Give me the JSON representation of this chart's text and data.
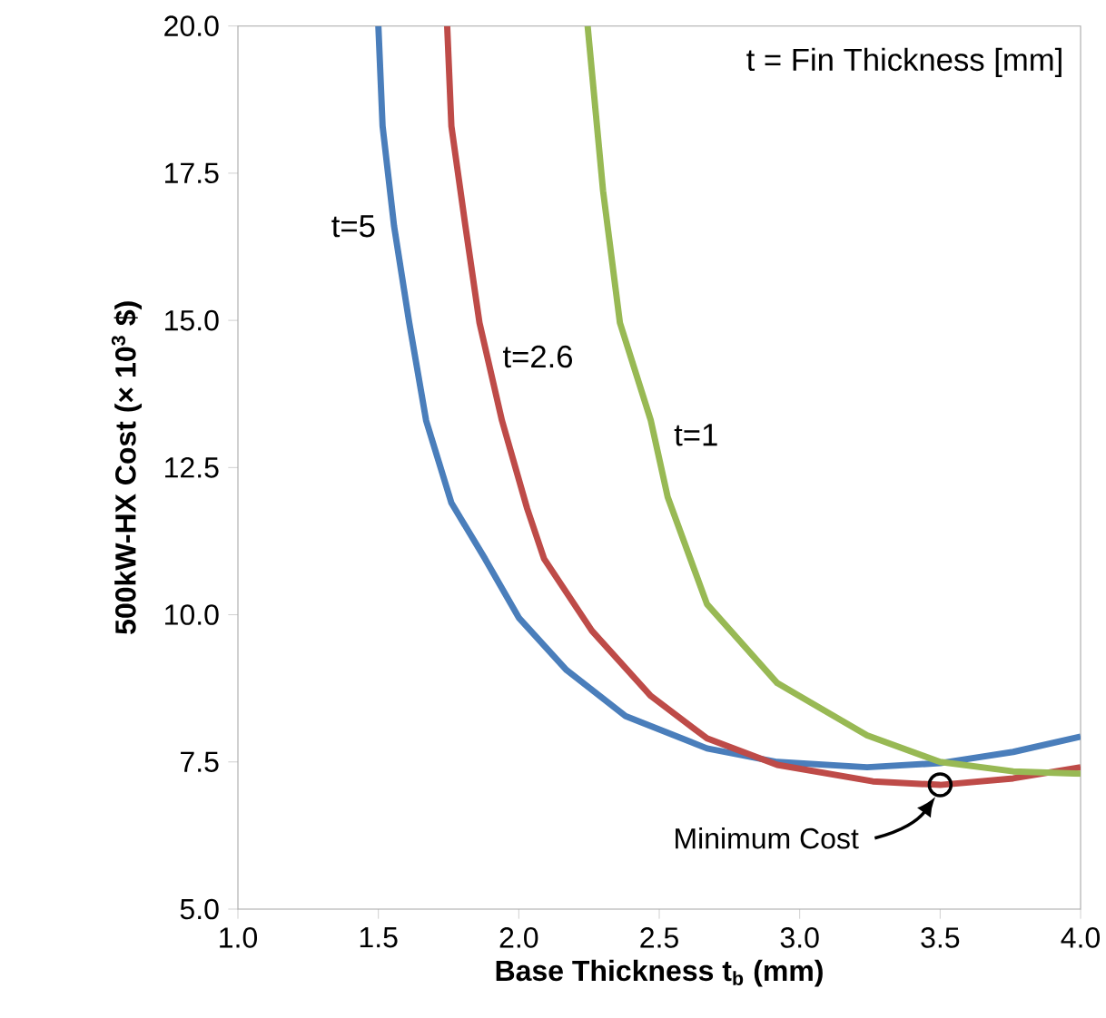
{
  "chart_data": {
    "type": "line",
    "xlabel": "Base Thickness t$_{b}$ (mm)",
    "ylabel": "500kW-HX Cost (× 10$^{3}$ $)",
    "xlim": [
      1.0,
      4.0
    ],
    "ylim": [
      5.0,
      20.0
    ],
    "xticks": [
      {
        "value": 1,
        "label": "1.0"
      },
      1.5,
      {
        "value": 2,
        "label": "2.0"
      },
      2.5,
      {
        "value": 3,
        "label": "3.0"
      },
      3.5,
      {
        "value": 4,
        "label": "4.0"
      }
    ],
    "yticks": [
      {
        "value": 5,
        "label": "5.0"
      },
      7.5,
      {
        "value": 10,
        "label": "10.0"
      },
      12.5,
      {
        "value": 15,
        "label": "15.0"
      },
      17.5,
      {
        "value": 20,
        "label": "20.0"
      }
    ],
    "grid": false,
    "legend": false,
    "marker": "none",
    "line_style": "solid",
    "annotations": [
      "t = Fin Thickness [mm]",
      "Minimum Cost"
    ],
    "series": [
      {
        "name": "t=5",
        "color": "#4a7ebb",
        "x": [
          1.5,
          1.515,
          1.556,
          1.61,
          1.67,
          1.76,
          1.88,
          2.0,
          2.17,
          2.38,
          2.67,
          2.92,
          3.24,
          3.5,
          3.76,
          4.0
        ],
        "values": [
          20.0,
          18.3,
          16.6,
          14.96,
          13.3,
          11.9,
          10.95,
          9.95,
          9.06,
          8.28,
          7.73,
          7.5,
          7.41,
          7.48,
          7.67,
          7.93
        ]
      },
      {
        "name": "t=2.6",
        "color": "#be4b48",
        "x": [
          1.745,
          1.76,
          1.81,
          1.86,
          1.94,
          2.03,
          2.09,
          2.26,
          2.47,
          2.67,
          2.92,
          3.26,
          3.5,
          3.76,
          4.0
        ],
        "values": [
          20.0,
          18.3,
          16.6,
          14.96,
          13.3,
          11.8,
          10.95,
          9.73,
          8.62,
          7.9,
          7.45,
          7.17,
          7.11,
          7.22,
          7.41
        ]
      },
      {
        "name": "t=1",
        "color": "#98b954",
        "x": [
          2.245,
          2.3,
          2.36,
          2.47,
          2.53,
          2.67,
          2.92,
          3.24,
          3.5,
          3.76,
          4.0
        ],
        "values": [
          20.0,
          17.2,
          14.96,
          13.3,
          12.0,
          10.18,
          8.84,
          7.95,
          7.5,
          7.34,
          7.3
        ]
      }
    ]
  }
}
